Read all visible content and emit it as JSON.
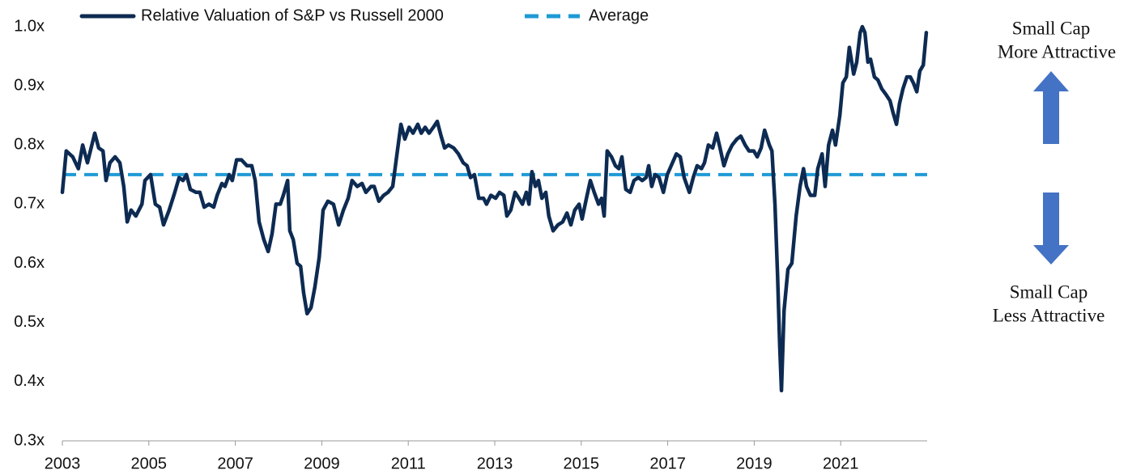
{
  "chart_data": {
    "type": "line",
    "x": [
      2003.0,
      2003.09,
      2003.24,
      2003.37,
      2003.47,
      2003.58,
      2003.75,
      2003.84,
      2003.94,
      2004.01,
      2004.1,
      2004.22,
      2004.33,
      2004.42,
      2004.5,
      2004.59,
      2004.7,
      2004.84,
      2004.91,
      2005.04,
      2005.15,
      2005.25,
      2005.34,
      2005.47,
      2005.6,
      2005.7,
      2005.79,
      2005.87,
      2005.96,
      2006.09,
      2006.18,
      2006.28,
      2006.39,
      2006.5,
      2006.58,
      2006.69,
      2006.76,
      2006.86,
      2006.93,
      2007.03,
      2007.14,
      2007.27,
      2007.38,
      2007.46,
      2007.55,
      2007.66,
      2007.76,
      2007.85,
      2007.94,
      2008.04,
      2008.11,
      2008.21,
      2008.26,
      2008.34,
      2008.43,
      2008.51,
      2008.58,
      2008.66,
      2008.75,
      2008.84,
      2008.94,
      2009.03,
      2009.14,
      2009.27,
      2009.39,
      2009.5,
      2009.61,
      2009.7,
      2009.82,
      2009.93,
      2010.02,
      2010.14,
      2010.21,
      2010.32,
      2010.43,
      2010.53,
      2010.64,
      2010.73,
      2010.83,
      2010.92,
      2011.02,
      2011.11,
      2011.22,
      2011.3,
      2011.39,
      2011.48,
      2011.58,
      2011.67,
      2011.76,
      2011.84,
      2011.93,
      2012.05,
      2012.16,
      2012.27,
      2012.36,
      2012.44,
      2012.53,
      2012.63,
      2012.74,
      2012.81,
      2012.91,
      2013.02,
      2013.11,
      2013.21,
      2013.28,
      2013.37,
      2013.47,
      2013.56,
      2013.64,
      2013.73,
      2013.79,
      2013.86,
      2013.94,
      2014.01,
      2014.09,
      2014.18,
      2014.25,
      2014.35,
      2014.46,
      2014.57,
      2014.67,
      2014.76,
      2014.85,
      2014.95,
      2015.02,
      2015.12,
      2015.21,
      2015.3,
      2015.4,
      2015.47,
      2015.53,
      2015.6,
      2015.7,
      2015.79,
      2015.87,
      2015.94,
      2016.03,
      2016.13,
      2016.22,
      2016.32,
      2016.41,
      2016.5,
      2016.56,
      2016.63,
      2016.71,
      2016.8,
      2016.9,
      2016.99,
      2017.08,
      2017.2,
      2017.29,
      2017.38,
      2017.5,
      2017.59,
      2017.68,
      2017.78,
      2017.85,
      2017.94,
      2018.04,
      2018.13,
      2018.21,
      2018.3,
      2018.39,
      2018.49,
      2018.6,
      2018.69,
      2018.79,
      2018.88,
      2018.99,
      2019.07,
      2019.16,
      2019.24,
      2019.35,
      2019.41,
      2019.48,
      2019.54,
      2019.59,
      2019.63,
      2019.69,
      2019.78,
      2019.87,
      2019.97,
      2020.06,
      2020.14,
      2020.21,
      2020.3,
      2020.4,
      2020.47,
      2020.57,
      2020.64,
      2020.72,
      2020.81,
      2020.88,
      2020.98,
      2021.05,
      2021.13,
      2021.2,
      2021.3,
      2021.37,
      2021.45,
      2021.5,
      2021.56,
      2021.63,
      2021.69,
      2021.78,
      2021.86,
      2021.95,
      2022.05,
      2022.14,
      2022.21,
      2022.29,
      2022.36,
      2022.44,
      2022.53,
      2022.61,
      2022.68,
      2022.76,
      2022.83,
      2022.91,
      2022.98
    ],
    "series": [
      {
        "name": "Relative Valuation of S&P vs Russell 2000",
        "color": "#0d2b52",
        "values": [
          0.72,
          0.79,
          0.78,
          0.76,
          0.8,
          0.77,
          0.82,
          0.795,
          0.79,
          0.74,
          0.77,
          0.78,
          0.77,
          0.73,
          0.67,
          0.69,
          0.68,
          0.7,
          0.74,
          0.75,
          0.7,
          0.695,
          0.665,
          0.69,
          0.72,
          0.745,
          0.74,
          0.75,
          0.725,
          0.72,
          0.72,
          0.695,
          0.7,
          0.695,
          0.715,
          0.735,
          0.73,
          0.75,
          0.74,
          0.775,
          0.775,
          0.765,
          0.765,
          0.74,
          0.67,
          0.64,
          0.62,
          0.65,
          0.7,
          0.7,
          0.715,
          0.74,
          0.655,
          0.64,
          0.6,
          0.595,
          0.55,
          0.515,
          0.525,
          0.56,
          0.61,
          0.69,
          0.705,
          0.7,
          0.665,
          0.69,
          0.71,
          0.74,
          0.73,
          0.735,
          0.72,
          0.73,
          0.73,
          0.705,
          0.715,
          0.72,
          0.73,
          0.78,
          0.835,
          0.81,
          0.83,
          0.82,
          0.835,
          0.82,
          0.83,
          0.82,
          0.83,
          0.84,
          0.815,
          0.795,
          0.8,
          0.795,
          0.785,
          0.77,
          0.765,
          0.745,
          0.75,
          0.71,
          0.71,
          0.7,
          0.715,
          0.71,
          0.72,
          0.715,
          0.68,
          0.69,
          0.72,
          0.71,
          0.7,
          0.72,
          0.7,
          0.755,
          0.73,
          0.74,
          0.71,
          0.72,
          0.68,
          0.655,
          0.665,
          0.67,
          0.685,
          0.665,
          0.69,
          0.7,
          0.675,
          0.71,
          0.74,
          0.72,
          0.7,
          0.71,
          0.68,
          0.79,
          0.78,
          0.765,
          0.76,
          0.78,
          0.725,
          0.72,
          0.74,
          0.745,
          0.74,
          0.745,
          0.765,
          0.73,
          0.75,
          0.745,
          0.72,
          0.75,
          0.765,
          0.785,
          0.78,
          0.745,
          0.72,
          0.745,
          0.765,
          0.76,
          0.77,
          0.8,
          0.795,
          0.82,
          0.795,
          0.765,
          0.785,
          0.8,
          0.81,
          0.815,
          0.8,
          0.79,
          0.79,
          0.78,
          0.795,
          0.825,
          0.8,
          0.79,
          0.7,
          0.58,
          0.46,
          0.385,
          0.52,
          0.59,
          0.6,
          0.68,
          0.73,
          0.76,
          0.73,
          0.715,
          0.715,
          0.76,
          0.785,
          0.73,
          0.8,
          0.825,
          0.8,
          0.85,
          0.905,
          0.915,
          0.965,
          0.92,
          0.94,
          0.99,
          1.0,
          0.99,
          0.94,
          0.945,
          0.915,
          0.91,
          0.895,
          0.885,
          0.875,
          0.855,
          0.835,
          0.87,
          0.895,
          0.915,
          0.915,
          0.905,
          0.89,
          0.925,
          0.935,
          0.99
        ]
      }
    ],
    "reference_line": {
      "name": "Average",
      "value": 0.75,
      "color": "#1f9ad6"
    },
    "xlim": [
      2003,
      2023
    ],
    "xticks": [
      2003,
      2005,
      2007,
      2009,
      2011,
      2013,
      2015,
      2017,
      2019,
      2021
    ],
    "ylim": [
      0.3,
      1.0
    ],
    "yticks": [
      {
        "value": 0.3,
        "label": "0.3x"
      },
      {
        "value": 0.4,
        "label": "0.4x"
      },
      {
        "value": 0.5,
        "label": "0.5x"
      },
      {
        "value": 0.6,
        "label": "0.6x"
      },
      {
        "value": 0.7,
        "label": "0.7x"
      },
      {
        "value": 0.8,
        "label": "0.8x"
      },
      {
        "value": 0.9,
        "label": "0.9x"
      },
      {
        "value": 1.0,
        "label": "1.0x"
      }
    ],
    "grid": false,
    "legend": "top",
    "annotations": [
      {
        "lines": [
          "Small Cap",
          "More Attractive"
        ]
      },
      {
        "lines": [
          "Small Cap",
          "Less Attractive"
        ]
      }
    ]
  }
}
